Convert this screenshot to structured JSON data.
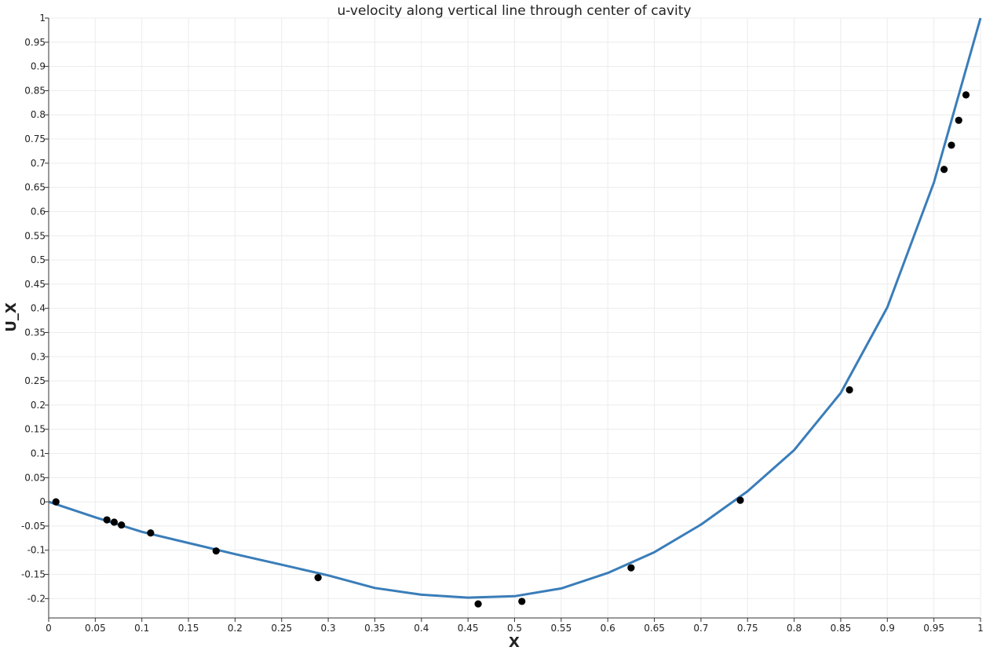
{
  "chart_data": {
    "type": "line",
    "title": "u-velocity along vertical line through center of cavity",
    "xlabel": "X",
    "ylabel": "U_X",
    "xlim": [
      0,
      1
    ],
    "ylim": [
      -0.24,
      1
    ],
    "grid": true,
    "x_ticks": [
      0,
      0.05,
      0.1,
      0.15,
      0.2,
      0.25,
      0.3,
      0.35,
      0.4,
      0.45,
      0.5,
      0.55,
      0.6,
      0.65,
      0.7,
      0.75,
      0.8,
      0.85,
      0.9,
      0.95,
      1
    ],
    "x_tick_labels": [
      "0",
      "0.05",
      "0.1",
      "0.15",
      "0.2",
      "0.25",
      "0.3",
      "0.35",
      "0.4",
      "0.45",
      "0.5",
      "0.55",
      "0.6",
      "0.65",
      "0.7",
      "0.75",
      "0.8",
      "0.85",
      "0.9",
      "0.95",
      "1"
    ],
    "y_ticks": [
      -0.2,
      -0.15,
      -0.1,
      -0.05,
      0,
      0.05,
      0.1,
      0.15,
      0.2,
      0.25,
      0.3,
      0.35,
      0.4,
      0.45,
      0.5,
      0.55,
      0.6,
      0.65,
      0.7,
      0.75,
      0.8,
      0.85,
      0.9,
      0.95,
      1
    ],
    "y_tick_labels": [
      "-0.2",
      "-0.15",
      "-0.1",
      "-0.05",
      "0",
      "0.05",
      "0.1",
      "0.15",
      "0.2",
      "0.25",
      "0.3",
      "0.35",
      "0.4",
      "0.45",
      "0.5",
      "0.55",
      "0.6",
      "0.65",
      "0.7",
      "0.75",
      "0.8",
      "0.85",
      "0.9",
      "0.95",
      "1"
    ],
    "series": [
      {
        "type": "line",
        "color": "#3a7db9",
        "x": [
          0,
          0.05,
          0.1,
          0.15,
          0.2,
          0.25,
          0.3,
          0.35,
          0.4,
          0.45,
          0.5,
          0.55,
          0.6,
          0.65,
          0.7,
          0.75,
          0.8,
          0.85,
          0.9,
          0.95,
          1
        ],
        "y": [
          0,
          -0.032,
          -0.062,
          -0.085,
          -0.108,
          -0.13,
          -0.152,
          -0.178,
          -0.192,
          -0.198,
          -0.195,
          -0.179,
          -0.147,
          -0.104,
          -0.047,
          0.022,
          0.107,
          0.225,
          0.402,
          0.66,
          1.0
        ]
      },
      {
        "type": "scatter",
        "color": "#000000",
        "x": [
          0.0078,
          0.0625,
          0.0703,
          0.0781,
          0.1094,
          0.1797,
          0.2891,
          0.4609,
          0.5078,
          0.625,
          0.7422,
          0.8594,
          0.9609,
          0.9688,
          0.9766,
          0.9844
        ],
        "y": [
          0,
          -0.0372,
          -0.0419,
          -0.0478,
          -0.0643,
          -0.1015,
          -0.1566,
          -0.2109,
          -0.2058,
          -0.1364,
          0.0033,
          0.2315,
          0.6872,
          0.7372,
          0.7887,
          0.8412
        ]
      }
    ]
  }
}
